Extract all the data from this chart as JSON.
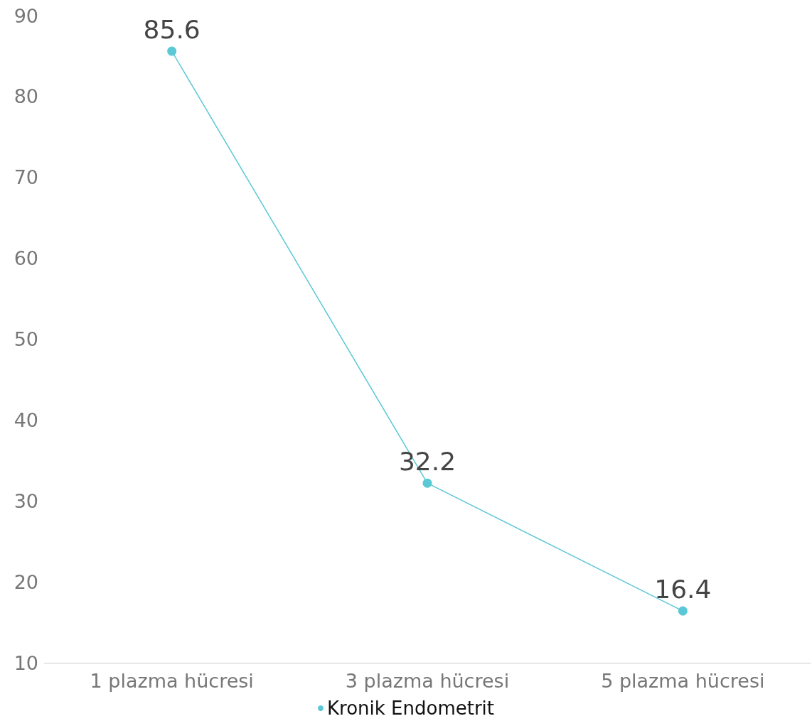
{
  "chart_data": {
    "type": "line",
    "categories": [
      "1 plazma hücresi",
      "3 plazma hücresi",
      "5 plazma hücresi"
    ],
    "series": [
      {
        "name": "Kronik Endometrit",
        "color": "#5bc8d6",
        "values": [
          85.6,
          32.2,
          16.4
        ]
      }
    ],
    "ylim": [
      10,
      90
    ],
    "yticks": [
      10,
      20,
      30,
      40,
      50,
      60,
      70,
      80,
      90
    ],
    "grid": false,
    "legend": "bottom",
    "marker": "circle",
    "line_style": "solid",
    "data_labels": true
  }
}
